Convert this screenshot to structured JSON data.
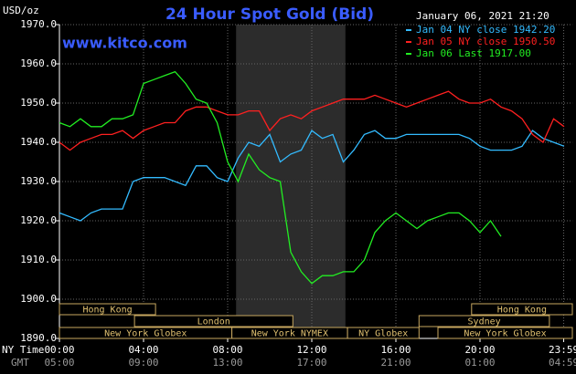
{
  "chart_data": {
    "type": "line",
    "title": "24 Hour Spot Gold (Bid)",
    "unit": "USD/oz",
    "timestamp": "January 06, 2021 21:20",
    "source": "www.kitco.com",
    "x_label": "NY Time",
    "x2_label": "GMT",
    "x": [
      0,
      0.5,
      1,
      1.5,
      2,
      2.5,
      3,
      3.5,
      4,
      4.5,
      5,
      5.5,
      6,
      6.5,
      7,
      7.5,
      8,
      8.5,
      9,
      9.5,
      10,
      10.5,
      11,
      11.5,
      12,
      12.5,
      13,
      13.5,
      14,
      14.5,
      15,
      15.5,
      16,
      16.5,
      17,
      17.5,
      18,
      18.5,
      19,
      19.5,
      20,
      20.5,
      21,
      21.5,
      22,
      22.5,
      23,
      23.5,
      24
    ],
    "series": [
      {
        "name": "Jan 04 NY close 1942.20",
        "color": "#33bbff",
        "values": [
          1922,
          1921,
          1920,
          1922,
          1923,
          1923,
          1923,
          1930,
          1931,
          1931,
          1931,
          1930,
          1929,
          1934,
          1934,
          1931,
          1930,
          1936,
          1940,
          1939,
          1942,
          1935,
          1937,
          1938,
          1943,
          1941,
          1942,
          1935,
          1938,
          1942,
          1943,
          1941,
          1941,
          1942,
          1942,
          1942,
          1942,
          1942,
          1942,
          1941,
          1939,
          1938,
          1938,
          1938,
          1939,
          1943,
          1941,
          1940,
          1939
        ]
      },
      {
        "name": "Jan 05 NY close 1950.50",
        "color": "#ff2020",
        "values": [
          1940,
          1938,
          1940,
          1941,
          1942,
          1942,
          1943,
          1941,
          1943,
          1944,
          1945,
          1945,
          1948,
          1949,
          1949,
          1948,
          1947,
          1947,
          1948,
          1948,
          1943,
          1946,
          1947,
          1946,
          1948,
          1949,
          1950,
          1951,
          1951,
          1951,
          1952,
          1951,
          1950,
          1949,
          1950,
          1951,
          1952,
          1953,
          1951,
          1950,
          1950,
          1951,
          1949,
          1948,
          1946,
          1942,
          1940,
          1946,
          1944
        ]
      },
      {
        "name": "Jan 06 Last 1917.00",
        "color": "#22ee22",
        "values": [
          1945,
          1944,
          1946,
          1944,
          1944,
          1946,
          1946,
          1947,
          1955,
          1956,
          1957,
          1958,
          1955,
          1951,
          1950,
          1945,
          1935,
          1930,
          1937,
          1933,
          1931,
          1930,
          1912,
          1907,
          1904,
          1906,
          1906,
          1907,
          1907,
          1910,
          1917,
          1920,
          1922,
          1920,
          1918,
          1920,
          1921,
          1922,
          1922,
          1920,
          1917,
          1920,
          1916,
          null,
          null,
          null,
          null,
          null,
          null
        ]
      }
    ],
    "xlim": [
      0,
      24.4
    ],
    "ylim": [
      1890,
      1970
    ],
    "yticks": [
      {
        "value": 1890,
        "label": "1890.0"
      },
      {
        "value": 1900,
        "label": "1900.0"
      },
      {
        "value": 1910,
        "label": "1910.0"
      },
      {
        "value": 1920,
        "label": "1920.0"
      },
      {
        "value": 1930,
        "label": "1930.0"
      },
      {
        "value": 1940,
        "label": "1940.0"
      },
      {
        "value": 1950,
        "label": "1950.0"
      },
      {
        "value": 1960,
        "label": "1960.0"
      },
      {
        "value": 1970,
        "label": "1970.0"
      }
    ],
    "xticks": [
      {
        "value": 0,
        "label": "00:00"
      },
      {
        "value": 4,
        "label": "04:00"
      },
      {
        "value": 8,
        "label": "08:00"
      },
      {
        "value": 12,
        "label": "12:00"
      },
      {
        "value": 16,
        "label": "16:00"
      },
      {
        "value": 20,
        "label": "20:00"
      },
      {
        "value": 23.98,
        "label": "23:59"
      }
    ],
    "x2ticks": [
      {
        "value": 0,
        "label": "05:00"
      },
      {
        "value": 4,
        "label": "09:00"
      },
      {
        "value": 8,
        "label": "13:00"
      },
      {
        "value": 12,
        "label": "17:00"
      },
      {
        "value": 16,
        "label": "21:00"
      },
      {
        "value": 20,
        "label": "01:00"
      },
      {
        "value": 23.98,
        "label": "04:59"
      }
    ],
    "shade": [
      8.4,
      13.6
    ],
    "grid": true,
    "sessions": [
      [
        {
          "name": "Hong Kong",
          "start": 0,
          "end": 4.57
        },
        {
          "name": "Hong Kong",
          "start": 19.6,
          "end": 24.4
        }
      ],
      [
        {
          "name": "London",
          "start": 3.57,
          "end": 11.1
        },
        {
          "name": "Sydney",
          "start": 17.1,
          "end": 23.3
        }
      ],
      [
        {
          "name": "New York Globex",
          "start": 0,
          "end": 8.2
        },
        {
          "name": "New York NYMEX",
          "start": 8.2,
          "end": 13.7
        },
        {
          "name": "NY Globex",
          "start": 13.7,
          "end": 17.1
        },
        {
          "name": "New York Globex",
          "start": 18,
          "end": 24.4
        }
      ]
    ]
  }
}
